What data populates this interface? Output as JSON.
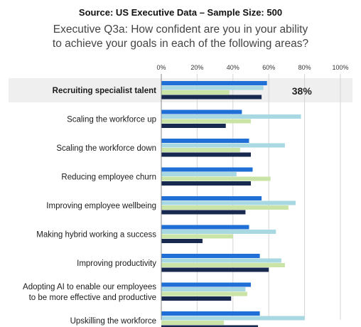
{
  "header": {
    "source": "Source: US Executive Data – Sample Size: 500",
    "question_line1": "Executive Q3a: How confident are you in your ability",
    "question_line2": "to achieve your goals in each of the following areas?"
  },
  "colors": {
    "series": [
      "#1f6fd6",
      "#a8d8e2",
      "#c9e4a6",
      "#17294f"
    ],
    "highlight_band": "#efefef",
    "grid": "#d5d5d5"
  },
  "chart_data": {
    "type": "bar",
    "orientation": "horizontal",
    "x_ticks": [
      "0%",
      "20%",
      "40%",
      "60%",
      "80%",
      "100%"
    ],
    "xlim": [
      0,
      100
    ],
    "grid": true,
    "categories": [
      "Recruiting specialist talent",
      "Scaling the workforce up",
      "Scaling the workforce down",
      "Reducing employee churn",
      "Improving employee wellbeing",
      "Making hybrid working a success",
      "Improving productivity",
      "Adopting AI to enable our employees to be more effective and productive",
      "Upskilling the workforce"
    ],
    "category_lines": [
      [
        "Recruiting specialist talent"
      ],
      [
        "Scaling the workforce up"
      ],
      [
        "Scaling the workforce down"
      ],
      [
        "Reducing employee churn"
      ],
      [
        "Improving employee wellbeing"
      ],
      [
        "Making hybrid working a success"
      ],
      [
        "Improving productivity"
      ],
      [
        "Adopting AI to enable our employees",
        "to be more effective and productive"
      ],
      [
        "Upskilling the workforce"
      ]
    ],
    "series": [
      {
        "values": [
          59,
          45,
          49,
          51,
          56,
          49,
          55,
          50,
          55
        ]
      },
      {
        "values": [
          57,
          78,
          69,
          42,
          75,
          64,
          67,
          47,
          80
        ]
      },
      {
        "values": [
          38,
          50,
          44,
          61,
          71,
          40,
          69,
          48,
          35
        ]
      },
      {
        "values": [
          56,
          36,
          50,
          50,
          47,
          23,
          60,
          39,
          54
        ]
      }
    ],
    "highlight": {
      "category_index": 0,
      "label": "38%"
    }
  }
}
